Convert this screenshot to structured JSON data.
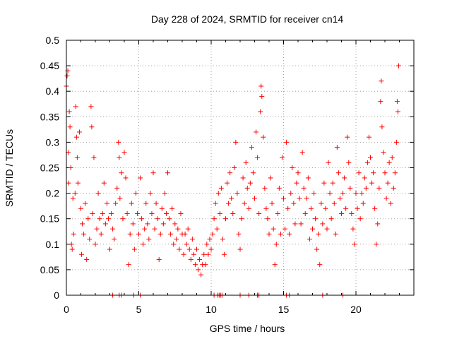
{
  "chart_data": {
    "type": "scatter",
    "title": "Day 228 of 2024, SRMTID for receiver cn14",
    "xlabel": "GPS time / hours",
    "ylabel": "SRMTID / TECUs",
    "xlim": [
      0,
      24
    ],
    "ylim": [
      0,
      0.5
    ],
    "x_ticks": [
      0,
      5,
      10,
      15,
      20
    ],
    "y_ticks": [
      0,
      0.05,
      0.1,
      0.15,
      0.2,
      0.25,
      0.3,
      0.35,
      0.4,
      0.45,
      0.5
    ],
    "x_tick_labels": [
      "0",
      "5",
      "10",
      "15",
      "20"
    ],
    "y_tick_labels": [
      "0",
      "0.05",
      "0.1",
      "0.15",
      "0.2",
      "0.25",
      "0.3",
      "0.35",
      "0.4",
      "0.45",
      "0.5"
    ],
    "grid": true,
    "marker": "+",
    "color": "#ff0000",
    "series": [
      {
        "name": "SRMTID",
        "points": [
          [
            0.0,
            0.41
          ],
          [
            0.05,
            0.43
          ],
          [
            0.1,
            0.44
          ],
          [
            0.12,
            0.28
          ],
          [
            0.15,
            0.22
          ],
          [
            0.2,
            0.36
          ],
          [
            0.25,
            0.33
          ],
          [
            0.3,
            0.25
          ],
          [
            0.35,
            0.1
          ],
          [
            0.4,
            0.09
          ],
          [
            0.45,
            0.19
          ],
          [
            0.5,
            0.12
          ],
          [
            0.6,
            0.2
          ],
          [
            0.65,
            0.37
          ],
          [
            0.7,
            0.31
          ],
          [
            0.75,
            0.27
          ],
          [
            0.8,
            0.22
          ],
          [
            0.9,
            0.32
          ],
          [
            1.0,
            0.17
          ],
          [
            1.05,
            0.08
          ],
          [
            1.1,
            0.14
          ],
          [
            1.2,
            0.12
          ],
          [
            1.3,
            0.18
          ],
          [
            1.4,
            0.07
          ],
          [
            1.5,
            0.15
          ],
          [
            1.6,
            0.11
          ],
          [
            1.7,
            0.37
          ],
          [
            1.75,
            0.33
          ],
          [
            1.8,
            0.16
          ],
          [
            1.9,
            0.27
          ],
          [
            2.0,
            0.1
          ],
          [
            2.1,
            0.13
          ],
          [
            2.2,
            0.2
          ],
          [
            2.3,
            0.15
          ],
          [
            2.4,
            0.12
          ],
          [
            2.5,
            0.16
          ],
          [
            2.6,
            0.22
          ],
          [
            2.7,
            0.14
          ],
          [
            2.8,
            0.18
          ],
          [
            2.9,
            0.15
          ],
          [
            3.0,
            0.09
          ],
          [
            3.1,
            0.16
          ],
          [
            3.2,
            0.13
          ],
          [
            3.3,
            0.11
          ],
          [
            3.4,
            0.18
          ],
          [
            3.5,
            0.21
          ],
          [
            3.6,
            0.3
          ],
          [
            3.65,
            0.27
          ],
          [
            3.7,
            0.19
          ],
          [
            3.8,
            0.24
          ],
          [
            3.9,
            0.15
          ],
          [
            4.0,
            0.28
          ],
          [
            4.1,
            0.23
          ],
          [
            4.2,
            0.16
          ],
          [
            4.3,
            0.06
          ],
          [
            4.4,
            0.12
          ],
          [
            4.5,
            0.18
          ],
          [
            4.6,
            0.14
          ],
          [
            4.7,
            0.09
          ],
          [
            4.8,
            0.2
          ],
          [
            4.9,
            0.16
          ],
          [
            5.0,
            0.12
          ],
          [
            5.1,
            0.23
          ],
          [
            5.2,
            0.15
          ],
          [
            5.3,
            0.1
          ],
          [
            5.4,
            0.13
          ],
          [
            5.5,
            0.18
          ],
          [
            5.6,
            0.14
          ],
          [
            5.7,
            0.11
          ],
          [
            5.8,
            0.2
          ],
          [
            5.9,
            0.16
          ],
          [
            6.0,
            0.24
          ],
          [
            6.1,
            0.13
          ],
          [
            6.2,
            0.18
          ],
          [
            6.3,
            0.15
          ],
          [
            6.4,
            0.07
          ],
          [
            6.5,
            0.12
          ],
          [
            6.6,
            0.17
          ],
          [
            6.7,
            0.14
          ],
          [
            6.8,
            0.2
          ],
          [
            6.9,
            0.16
          ],
          [
            7.0,
            0.24
          ],
          [
            7.1,
            0.15
          ],
          [
            7.2,
            0.12
          ],
          [
            7.3,
            0.17
          ],
          [
            7.4,
            0.1
          ],
          [
            7.5,
            0.14
          ],
          [
            7.6,
            0.11
          ],
          [
            7.7,
            0.13
          ],
          [
            7.8,
            0.09
          ],
          [
            7.9,
            0.16
          ],
          [
            8.0,
            0.12
          ],
          [
            8.1,
            0.08
          ],
          [
            8.2,
            0.12
          ],
          [
            8.3,
            0.1
          ],
          [
            8.4,
            0.13
          ],
          [
            8.5,
            0.09
          ],
          [
            8.6,
            0.07
          ],
          [
            8.7,
            0.11
          ],
          [
            8.8,
            0.08
          ],
          [
            8.9,
            0.06
          ],
          [
            9.0,
            0.09
          ],
          [
            9.1,
            0.05
          ],
          [
            9.2,
            0.07
          ],
          [
            9.3,
            0.04
          ],
          [
            9.4,
            0.06
          ],
          [
            9.5,
            0.08
          ],
          [
            9.6,
            0.06
          ],
          [
            9.7,
            0.1
          ],
          [
            9.8,
            0.08
          ],
          [
            9.9,
            0.11
          ],
          [
            10.0,
            0.09
          ],
          [
            10.1,
            0.12
          ],
          [
            10.2,
            0.15
          ],
          [
            10.3,
            0.18
          ],
          [
            10.4,
            0.13
          ],
          [
            10.5,
            0.2
          ],
          [
            10.6,
            0.16
          ],
          [
            10.7,
            0.21
          ],
          [
            10.8,
            0.11
          ],
          [
            10.9,
            0.08
          ],
          [
            11.0,
            0.15
          ],
          [
            11.1,
            0.22
          ],
          [
            11.2,
            0.18
          ],
          [
            11.3,
            0.24
          ],
          [
            11.4,
            0.19
          ],
          [
            11.5,
            0.16
          ],
          [
            11.6,
            0.25
          ],
          [
            11.7,
            0.3
          ],
          [
            11.8,
            0.2
          ],
          [
            11.9,
            0.12
          ],
          [
            12.0,
            0.09
          ],
          [
            12.1,
            0.15
          ],
          [
            12.2,
            0.23
          ],
          [
            12.3,
            0.18
          ],
          [
            12.4,
            0.26
          ],
          [
            12.5,
            0.21
          ],
          [
            12.6,
            0.17
          ],
          [
            12.7,
            0.22
          ],
          [
            12.8,
            0.29
          ],
          [
            12.9,
            0.24
          ],
          [
            13.0,
            0.19
          ],
          [
            13.1,
            0.32
          ],
          [
            13.2,
            0.27
          ],
          [
            13.3,
            0.16
          ],
          [
            13.4,
            0.36
          ],
          [
            13.45,
            0.41
          ],
          [
            13.5,
            0.39
          ],
          [
            13.6,
            0.31
          ],
          [
            13.7,
            0.21
          ],
          [
            13.8,
            0.17
          ],
          [
            13.9,
            0.15
          ],
          [
            14.0,
            0.12
          ],
          [
            14.1,
            0.23
          ],
          [
            14.2,
            0.18
          ],
          [
            14.3,
            0.13
          ],
          [
            14.4,
            0.06
          ],
          [
            14.5,
            0.1
          ],
          [
            14.6,
            0.16
          ],
          [
            14.7,
            0.21
          ],
          [
            14.8,
            0.12
          ],
          [
            14.9,
            0.27
          ],
          [
            15.0,
            0.19
          ],
          [
            15.1,
            0.13
          ],
          [
            15.2,
            0.3
          ],
          [
            15.3,
            0.17
          ],
          [
            15.4,
            0.12
          ],
          [
            15.5,
            0.2
          ],
          [
            15.6,
            0.25
          ],
          [
            15.7,
            0.18
          ],
          [
            15.8,
            0.14
          ],
          [
            15.9,
            0.22
          ],
          [
            16.0,
            0.24
          ],
          [
            16.1,
            0.19
          ],
          [
            16.2,
            0.14
          ],
          [
            16.3,
            0.28
          ],
          [
            16.4,
            0.21
          ],
          [
            16.5,
            0.16
          ],
          [
            16.6,
            0.19
          ],
          [
            16.7,
            0.23
          ],
          [
            16.8,
            0.11
          ],
          [
            16.9,
            0.17
          ],
          [
            17.0,
            0.13
          ],
          [
            17.1,
            0.2
          ],
          [
            17.2,
            0.15
          ],
          [
            17.3,
            0.09
          ],
          [
            17.4,
            0.12
          ],
          [
            17.5,
            0.06
          ],
          [
            17.6,
            0.18
          ],
          [
            17.7,
            0.14
          ],
          [
            17.8,
            0.22
          ],
          [
            17.9,
            0.17
          ],
          [
            18.0,
            0.13
          ],
          [
            18.1,
            0.26
          ],
          [
            18.2,
            0.2
          ],
          [
            18.3,
            0.15
          ],
          [
            18.4,
            0.22
          ],
          [
            18.5,
            0.18
          ],
          [
            18.6,
            0.12
          ],
          [
            18.7,
            0.29
          ],
          [
            18.8,
            0.24
          ],
          [
            18.9,
            0.19
          ],
          [
            19.0,
            0.16
          ],
          [
            19.1,
            0.2
          ],
          [
            19.2,
            0.23
          ],
          [
            19.3,
            0.17
          ],
          [
            19.4,
            0.31
          ],
          [
            19.5,
            0.26
          ],
          [
            19.6,
            0.21
          ],
          [
            19.7,
            0.16
          ],
          [
            19.8,
            0.13
          ],
          [
            19.9,
            0.1
          ],
          [
            20.0,
            0.2
          ],
          [
            20.1,
            0.17
          ],
          [
            20.2,
            0.24
          ],
          [
            20.3,
            0.15
          ],
          [
            20.4,
            0.2
          ],
          [
            20.5,
            0.18
          ],
          [
            20.6,
            0.23
          ],
          [
            20.7,
            0.21
          ],
          [
            20.8,
            0.26
          ],
          [
            20.9,
            0.31
          ],
          [
            21.0,
            0.27
          ],
          [
            21.1,
            0.22
          ],
          [
            21.2,
            0.24
          ],
          [
            21.3,
            0.17
          ],
          [
            21.4,
            0.1
          ],
          [
            21.5,
            0.14
          ],
          [
            21.6,
            0.21
          ],
          [
            21.7,
            0.38
          ],
          [
            21.75,
            0.42
          ],
          [
            21.8,
            0.33
          ],
          [
            21.9,
            0.28
          ],
          [
            22.0,
            0.24
          ],
          [
            22.1,
            0.19
          ],
          [
            22.2,
            0.22
          ],
          [
            22.3,
            0.26
          ],
          [
            22.4,
            0.18
          ],
          [
            22.5,
            0.27
          ],
          [
            22.6,
            0.21
          ],
          [
            22.7,
            0.24
          ],
          [
            22.8,
            0.3
          ],
          [
            22.85,
            0.38
          ],
          [
            22.9,
            0.36
          ],
          [
            22.95,
            0.45
          ]
        ]
      }
    ],
    "zero_markers_x": [
      3.2,
      3.65,
      3.8,
      4.65,
      5.1,
      10.2,
      10.45,
      10.55,
      10.65,
      10.75,
      12.0,
      12.6,
      13.2,
      13.3,
      15.2,
      15.4,
      17.7,
      19.1
    ]
  }
}
